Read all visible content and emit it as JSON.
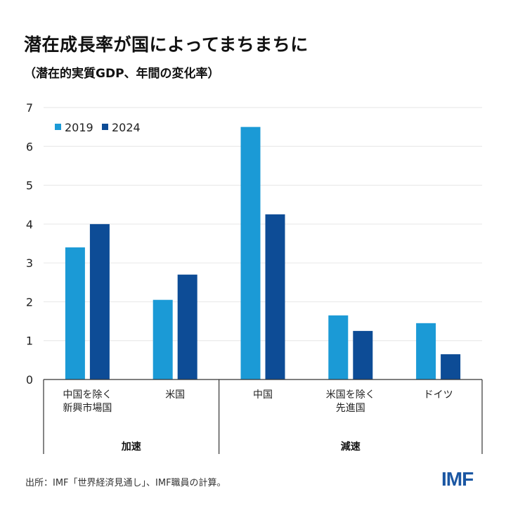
{
  "title": "潜在成長率が国によってまちまちに",
  "subtitle": "（潜在的実質GDP、年間の変化率）",
  "source": "出所：IMF「世界経済見通し」、IMF職員の計算。",
  "logo": "IMF",
  "colors": {
    "2019": "#1b9ad6",
    "2024": "#0d4c96",
    "logo": "#1b57a3"
  },
  "chart_data": {
    "type": "bar",
    "title": "潜在成長率が国によってまちまちに",
    "subtitle": "（潜在的実質GDP、年間の変化率）",
    "categories": [
      [
        "中国を除く",
        "新興市場国"
      ],
      [
        "米国"
      ],
      [
        "中国"
      ],
      [
        "米国を除く",
        "先進国"
      ],
      [
        "ドイツ"
      ]
    ],
    "groups": [
      {
        "label": "加速",
        "categories": [
          0,
          1
        ]
      },
      {
        "label": "減速",
        "categories": [
          2,
          3,
          4
        ]
      }
    ],
    "series": [
      {
        "name": "2019",
        "values": [
          3.4,
          2.05,
          6.5,
          1.65,
          1.45
        ]
      },
      {
        "name": "2024",
        "values": [
          4.0,
          2.7,
          4.25,
          1.25,
          0.65
        ]
      }
    ],
    "yticks": [
      "0",
      "1",
      "2",
      "3",
      "4",
      "5",
      "6",
      "7"
    ],
    "ylim": [
      0,
      7
    ],
    "grid": true,
    "legend": "top-left"
  }
}
